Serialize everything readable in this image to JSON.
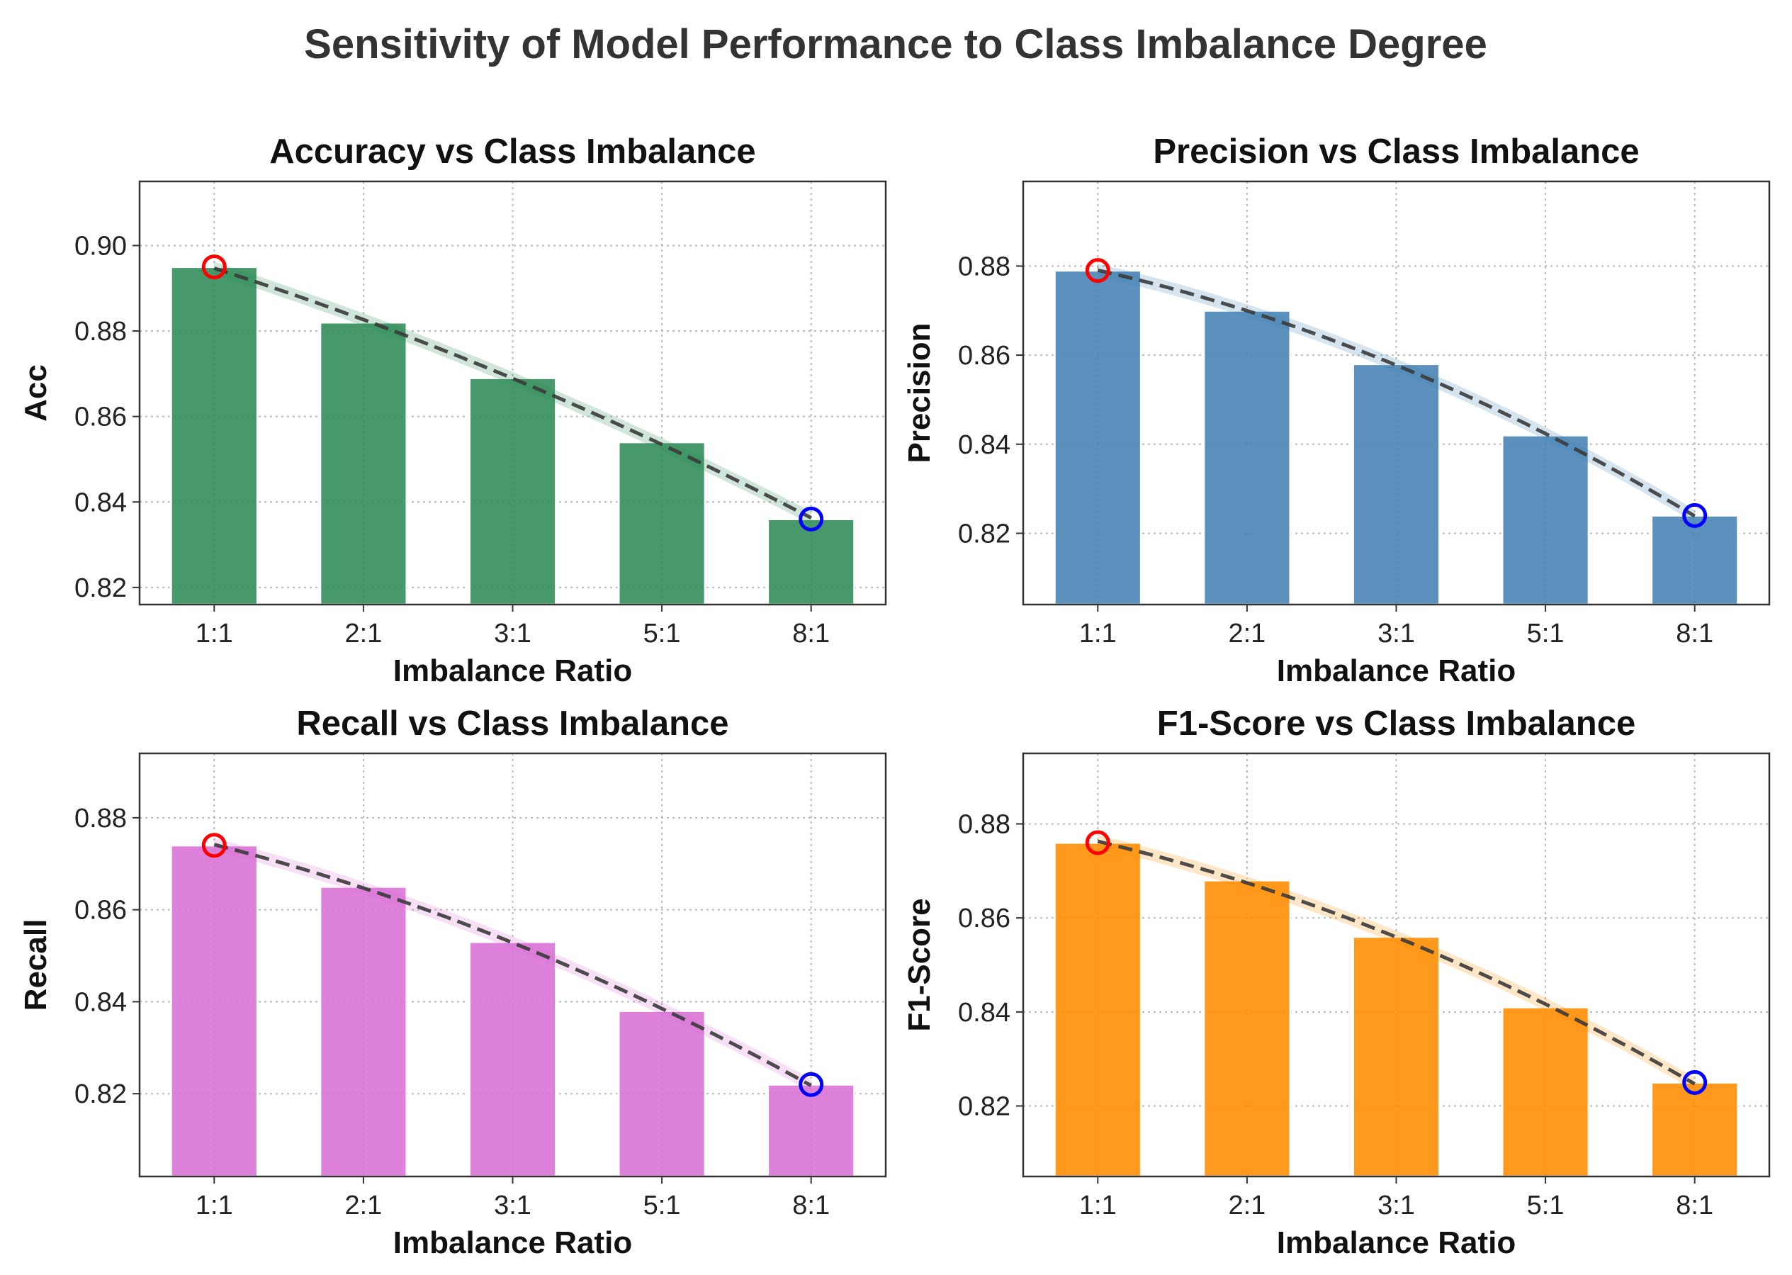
{
  "title": "Sensitivity of Model Performance to Class Imbalance Degree",
  "chart_data": [
    {
      "type": "bar",
      "title": "Accuracy vs Class Imbalance",
      "xlabel": "Imbalance Ratio",
      "ylabel": "Acc",
      "categories": [
        "1:1",
        "2:1",
        "3:1",
        "5:1",
        "8:1"
      ],
      "values": [
        0.895,
        0.882,
        0.869,
        0.854,
        0.836
      ],
      "ylim": [
        0.816,
        0.915
      ],
      "yticks": [
        0.82,
        0.84,
        0.86,
        0.88,
        0.9
      ],
      "ytick_labels": [
        "0.82",
        "0.84",
        "0.86",
        "0.88",
        "0.90"
      ],
      "color": "#2e8b57",
      "trend": "dashed quadratic fit with shaded band",
      "max_marker": "1:1",
      "min_marker": "8:1",
      "grid": true
    },
    {
      "type": "bar",
      "title": "Precision vs Class Imbalance",
      "xlabel": "Imbalance Ratio",
      "ylabel": "Precision",
      "categories": [
        "1:1",
        "2:1",
        "3:1",
        "5:1",
        "8:1"
      ],
      "values": [
        0.879,
        0.87,
        0.858,
        0.842,
        0.824
      ],
      "ylim": [
        0.804,
        0.899
      ],
      "yticks": [
        0.82,
        0.84,
        0.86,
        0.88
      ],
      "ytick_labels": [
        "0.82",
        "0.84",
        "0.86",
        "0.88"
      ],
      "color": "#4682b4",
      "trend": "dashed quadratic fit with shaded band",
      "max_marker": "1:1",
      "min_marker": "8:1",
      "grid": true
    },
    {
      "type": "bar",
      "title": "Recall vs Class Imbalance",
      "xlabel": "Imbalance Ratio",
      "ylabel": "Recall",
      "categories": [
        "1:1",
        "2:1",
        "3:1",
        "5:1",
        "8:1"
      ],
      "values": [
        0.874,
        0.865,
        0.853,
        0.838,
        0.822
      ],
      "ylim": [
        0.802,
        0.894
      ],
      "yticks": [
        0.82,
        0.84,
        0.86,
        0.88
      ],
      "ytick_labels": [
        "0.82",
        "0.84",
        "0.86",
        "0.88"
      ],
      "color": "#da70d6",
      "trend": "dashed quadratic fit with shaded band",
      "max_marker": "1:1",
      "min_marker": "8:1",
      "grid": true
    },
    {
      "type": "bar",
      "title": "F1-Score vs Class Imbalance",
      "xlabel": "Imbalance Ratio",
      "ylabel": "F1-Score",
      "categories": [
        "1:1",
        "2:1",
        "3:1",
        "5:1",
        "8:1"
      ],
      "values": [
        0.876,
        0.868,
        0.856,
        0.841,
        0.825
      ],
      "ylim": [
        0.805,
        0.895
      ],
      "yticks": [
        0.82,
        0.84,
        0.86,
        0.88
      ],
      "ytick_labels": [
        "0.82",
        "0.84",
        "0.86",
        "0.88"
      ],
      "color": "#ff8c00",
      "trend": "dashed quadratic fit with shaded band",
      "max_marker": "1:1",
      "min_marker": "8:1",
      "grid": true
    }
  ]
}
